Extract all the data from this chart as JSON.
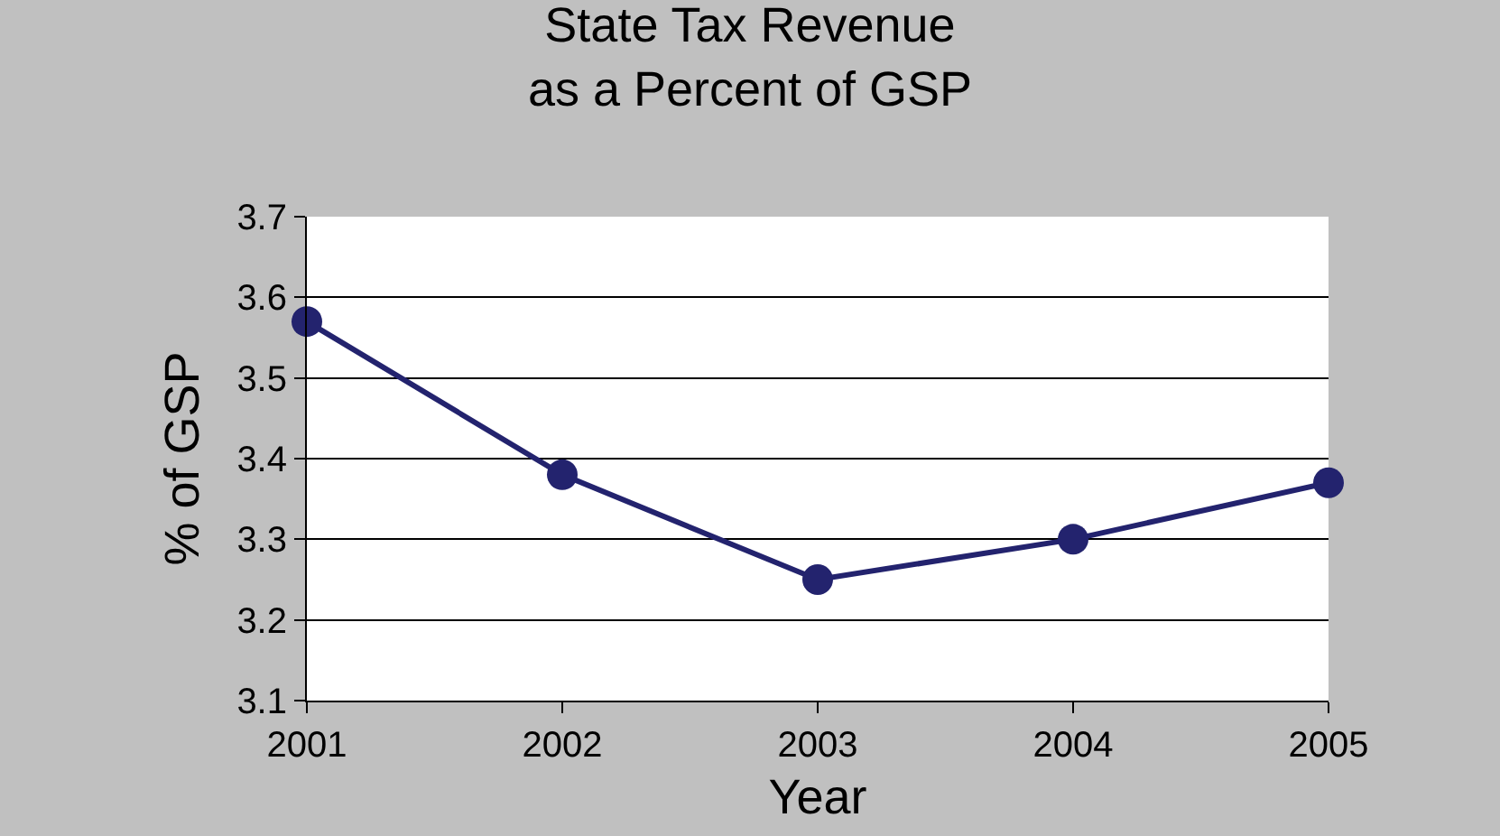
{
  "chart_data": {
    "type": "line",
    "title": "State Tax Revenue\nas a Percent of GSP",
    "xlabel": "Year",
    "ylabel": "% of GSP",
    "x": [
      2001,
      2002,
      2003,
      2004,
      2005
    ],
    "xlim": [
      2001,
      2005
    ],
    "xticks": [
      2001,
      2002,
      2003,
      2004,
      2005
    ],
    "series": [
      {
        "color": "#23236e",
        "values": [
          3.57,
          3.38,
          3.25,
          3.3,
          3.37
        ]
      }
    ],
    "ylim": [
      3.1,
      3.7
    ],
    "yticks": [
      3.1,
      3.2,
      3.3,
      3.4,
      3.5,
      3.6,
      3.7
    ],
    "grid": "y",
    "marker": "circle",
    "line_style": "solid",
    "legend": false
  }
}
